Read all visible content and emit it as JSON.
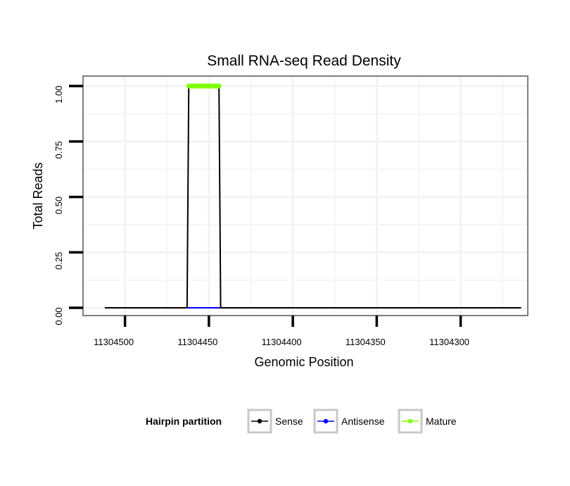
{
  "chart_data": {
    "type": "line",
    "title": "Small RNA-seq Read Density",
    "xlabel": "Genomic Position",
    "ylabel": "Total Reads",
    "x_reversed": true,
    "xlim": [
      11304525,
      11304260
    ],
    "ylim": [
      -0.035,
      1.045
    ],
    "x_ticks": [
      11304500,
      11304450,
      11304400,
      11304350,
      11304300
    ],
    "x_tick_labels": [
      "11304500",
      "11304450",
      "11304400",
      "11304350",
      "11304300"
    ],
    "y_ticks": [
      0,
      0.25,
      0.5,
      0.75,
      1
    ],
    "y_tick_labels": [
      "0.00",
      "0.25",
      "0.50",
      "0.75",
      "1.00"
    ],
    "grid": true,
    "legend": {
      "title": "Hairpin partition",
      "position": "bottom",
      "entries": [
        {
          "label": "Sense",
          "color": "#000000"
        },
        {
          "label": "Antisense",
          "color": "#0000ff"
        },
        {
          "label": "Mature",
          "color": "#7fff00"
        }
      ]
    },
    "series": [
      {
        "name": "Sense",
        "color": "#000000",
        "x": [
          11304512,
          11304463,
          11304462,
          11304444,
          11304443,
          11304264
        ],
        "y": [
          0,
          0,
          1,
          1,
          0,
          0
        ]
      },
      {
        "name": "Antisense",
        "color": "#0000ff",
        "x": [
          11304463,
          11304443
        ],
        "y": [
          0,
          0
        ]
      },
      {
        "name": "Mature",
        "color": "#7fff00",
        "x": [
          11304462,
          11304444
        ],
        "y": [
          1,
          1
        ]
      }
    ]
  }
}
